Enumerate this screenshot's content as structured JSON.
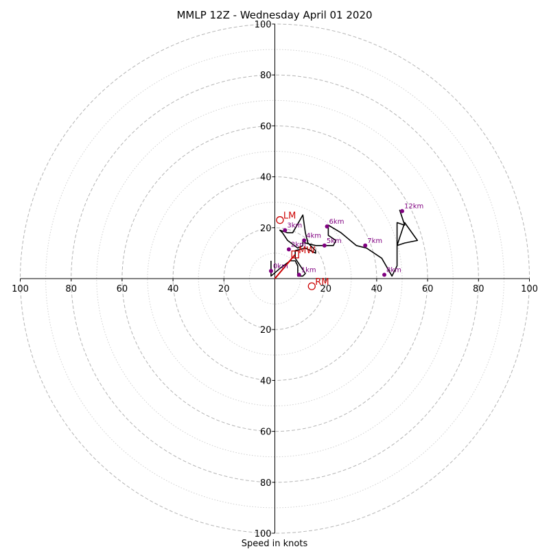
{
  "chart_data": {
    "type": "line",
    "subtype": "hodograph",
    "title": "MMLP 12Z - Wednesday April 01 2020",
    "xlabel": "Speed in knots",
    "ylabel": "",
    "xlim": [
      -100,
      100
    ],
    "ylim": [
      -100,
      100
    ],
    "ring_major": [
      20,
      40,
      60,
      80,
      100
    ],
    "ring_minor": [
      10,
      30,
      50,
      70,
      90
    ],
    "axis_tick_labels": [
      "20",
      "40",
      "60",
      "80",
      "100"
    ],
    "colors": {
      "trace": "#000000",
      "height_points": "#800080",
      "motion": "#cc0000",
      "rings_major": "#b4b4b4",
      "rings_minor": "#cfcfcf"
    },
    "trace": {
      "u": [
        -1.5,
        -1.5,
        2,
        6,
        8,
        9,
        9,
        11,
        12,
        8,
        8,
        12,
        16,
        16,
        13,
        12,
        11,
        7,
        5,
        2,
        3,
        5,
        9,
        11,
        11,
        12,
        16,
        21,
        23,
        24,
        21,
        21,
        26,
        32,
        36,
        42,
        46,
        48,
        48,
        51,
        56,
        51,
        48,
        48,
        51,
        49
      ],
      "v": [
        7,
        1,
        4,
        7,
        7,
        5,
        1,
        1,
        2,
        8,
        11,
        12,
        10,
        11,
        14,
        18,
        25,
        18,
        18,
        19,
        18,
        15,
        12,
        13,
        15,
        14,
        13,
        13,
        13,
        15,
        17,
        21,
        18,
        13,
        12,
        8,
        1,
        5,
        13,
        14,
        15,
        22,
        13,
        22,
        21,
        27
      ]
    },
    "height_points": [
      {
        "label": "0km",
        "u": -1.5,
        "v": 3
      },
      {
        "label": "1km",
        "u": 9.5,
        "v": 1.5
      },
      {
        "label": "2km",
        "u": 5.5,
        "v": 11.5
      },
      {
        "label": "3km",
        "u": 4,
        "v": 19
      },
      {
        "label": "4km",
        "u": 11.5,
        "v": 15
      },
      {
        "label": "5km",
        "u": 19.5,
        "v": 13
      },
      {
        "label": "6km",
        "u": 20.5,
        "v": 20.5
      },
      {
        "label": "7km",
        "u": 35.5,
        "v": 13
      },
      {
        "label": "8km",
        "u": 43,
        "v": 1.5
      },
      {
        "label": "12km",
        "u": 50,
        "v": 26.5
      }
    ],
    "storm_motion": [
      {
        "label": "LM",
        "u": 2,
        "v": 23,
        "marker": "circle"
      },
      {
        "label": "MW",
        "u": 8,
        "v": 9.5,
        "marker": "square"
      },
      {
        "label": "RM",
        "u": 14.5,
        "v": -3,
        "marker": "circle"
      }
    ],
    "mean_wind_vector": {
      "u": 8,
      "v": 9.5
    }
  }
}
